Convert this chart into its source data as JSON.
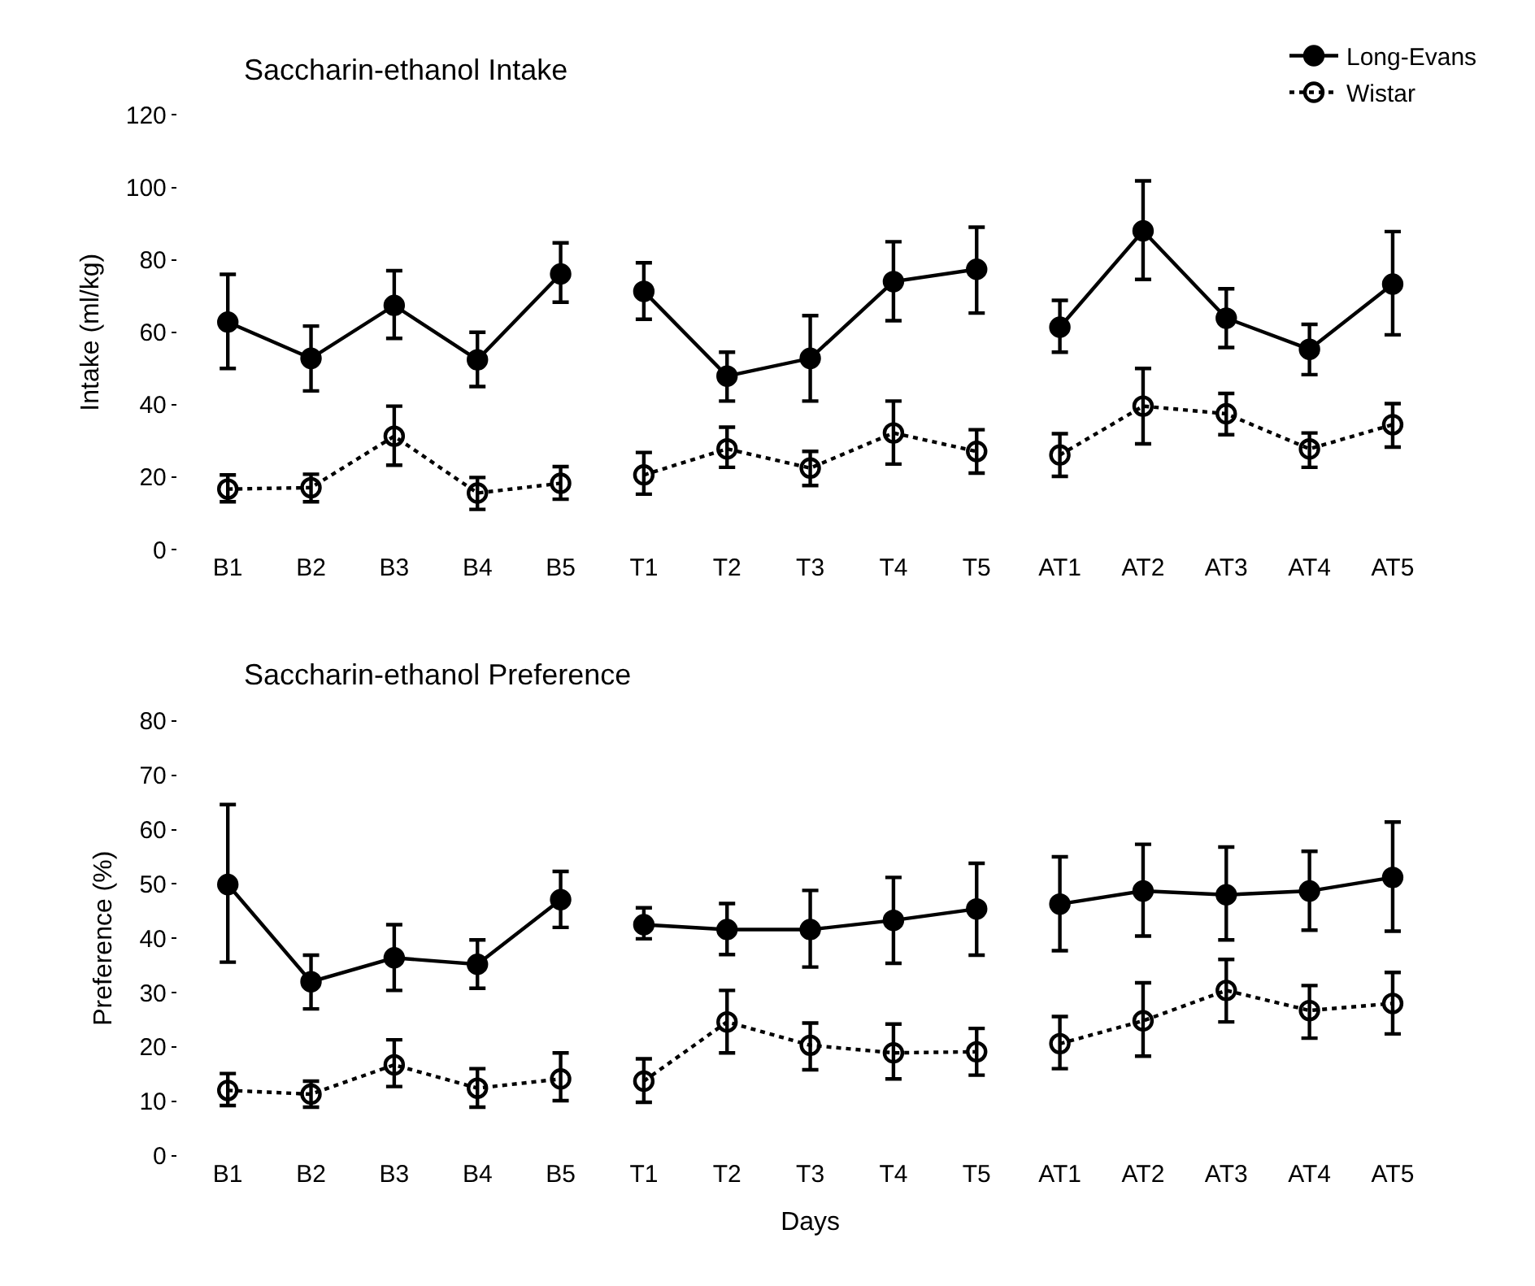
{
  "chart_data": [
    {
      "type": "line",
      "title": "Saccharin-ethanol Intake",
      "ylabel": "Intake (ml/kg)",
      "categories": [
        "B1",
        "B2",
        "B3",
        "B4",
        "B5",
        "T1",
        "T2",
        "T3",
        "T4",
        "T5",
        "AT1",
        "AT2",
        "AT3",
        "AT4",
        "AT5"
      ],
      "ylim": [
        0,
        120
      ],
      "yticks": [
        0,
        20,
        40,
        60,
        80,
        100,
        120
      ],
      "legend": "top right",
      "series": [
        {
          "name": "Long-Evans",
          "color": "#000000",
          "marker": "circle",
          "line_style": "solid",
          "values": [
            62.8,
            52.8,
            67.4,
            52.4,
            76.1,
            null,
            null,
            null,
            null,
            null,
            null,
            null,
            null,
            null,
            null
          ],
          "errors": [
            [
              50,
              76
            ],
            [
              43.8,
              61.7
            ],
            [
              58.3,
              77
            ],
            [
              45,
              60
            ],
            [
              68.3,
              84.7
            ],
            null,
            null,
            null,
            null,
            null,
            null,
            null,
            null,
            null,
            null
          ]
        },
        {
          "color": "#000000",
          "marker": "circle",
          "line_style": "solid",
          "values": [
            null,
            null,
            null,
            null,
            null,
            71.3,
            47.9,
            52.8,
            74,
            77.4,
            null,
            null,
            null,
            null,
            null
          ],
          "errors": [
            null,
            null,
            null,
            null,
            null,
            [
              63.6,
              79.2
            ],
            [
              41,
              54.5
            ],
            [
              41,
              64.6
            ],
            [
              63.2,
              85
            ],
            [
              65.3,
              89
            ],
            null,
            null,
            null,
            null,
            null
          ]
        },
        {
          "color": "#000000",
          "marker": "circle",
          "line_style": "solid",
          "values": [
            null,
            null,
            null,
            null,
            null,
            null,
            null,
            null,
            null,
            null,
            61.4,
            88,
            63.9,
            55.3,
            73.3
          ],
          "errors": [
            null,
            null,
            null,
            null,
            null,
            null,
            null,
            null,
            null,
            null,
            [
              54.5,
              68.8
            ],
            [
              74.6,
              101.8
            ],
            [
              55.8,
              72
            ],
            [
              48.3,
              62.2
            ],
            [
              59.3,
              87.8
            ]
          ]
        },
        {
          "name": "Wistar",
          "color": "#000000",
          "marker": "circle-open",
          "line_style": "dotted",
          "values": [
            16.7,
            17.1,
            31.3,
            15.6,
            18.3,
            null,
            null,
            null,
            null,
            null,
            null,
            null,
            null,
            null,
            null
          ],
          "errors": [
            [
              13.2,
              20.6
            ],
            [
              13.2,
              20.8
            ],
            [
              23.3,
              39.6
            ],
            [
              11.1,
              19.9
            ],
            [
              13.9,
              22.9
            ],
            null,
            null,
            null,
            null,
            null,
            null,
            null,
            null,
            null,
            null
          ]
        },
        {
          "color": "#000000",
          "marker": "circle-open",
          "line_style": "dotted",
          "values": [
            null,
            null,
            null,
            null,
            null,
            20.6,
            27.8,
            22.5,
            32.2,
            27.1,
            null,
            null,
            null,
            null,
            null
          ],
          "errors": [
            null,
            null,
            null,
            null,
            null,
            [
              15.3,
              26.8
            ],
            [
              22.7,
              33.8
            ],
            [
              17.7,
              27.1
            ],
            [
              23.6,
              41
            ],
            [
              21.1,
              33.1
            ],
            null,
            null,
            null,
            null,
            null
          ]
        },
        {
          "color": "#000000",
          "marker": "circle-open",
          "line_style": "dotted",
          "values": [
            null,
            null,
            null,
            null,
            null,
            null,
            null,
            null,
            null,
            null,
            26.1,
            39.6,
            37.5,
            27.8,
            34.5
          ],
          "errors": [
            null,
            null,
            null,
            null,
            null,
            null,
            null,
            null,
            null,
            null,
            [
              20.2,
              32
            ],
            [
              29.2,
              50
            ],
            [
              31.7,
              43.1
            ],
            [
              22.7,
              32.2
            ],
            [
              28.3,
              40.3
            ]
          ]
        }
      ]
    },
    {
      "type": "line",
      "title": "Saccharin-ethanol Preference",
      "ylabel": "Preference (%)",
      "xlabel": "Days",
      "categories": [
        "B1",
        "B2",
        "B3",
        "B4",
        "B5",
        "T1",
        "T2",
        "T3",
        "T4",
        "T5",
        "AT1",
        "AT2",
        "AT3",
        "AT4",
        "AT5"
      ],
      "ylim": [
        0,
        80
      ],
      "yticks": [
        0,
        10,
        20,
        30,
        40,
        50,
        60,
        70,
        80
      ],
      "legend": false,
      "series": [
        {
          "color": "#000000",
          "marker": "circle",
          "line_style": "solid",
          "values": [
            49.9,
            32,
            36.4,
            35.2,
            47.1,
            null,
            null,
            null,
            null,
            null,
            null,
            null,
            null,
            null,
            null
          ],
          "errors": [
            [
              35.6,
              64.6
            ],
            [
              27,
              36.9
            ],
            [
              30.4,
              42.5
            ],
            [
              30.8,
              39.7
            ],
            [
              42,
              52.3
            ],
            null,
            null,
            null,
            null,
            null,
            null,
            null,
            null,
            null,
            null
          ]
        },
        {
          "color": "#000000",
          "marker": "circle",
          "line_style": "solid",
          "values": [
            null,
            null,
            null,
            null,
            null,
            42.5,
            41.6,
            41.6,
            43.3,
            45.4,
            null,
            null,
            null,
            null,
            null
          ],
          "errors": [
            null,
            null,
            null,
            null,
            null,
            [
              39.9,
              45.6
            ],
            [
              37,
              46.4
            ],
            [
              34.7,
              48.8
            ],
            [
              35.4,
              51.2
            ],
            [
              36.9,
              53.8
            ],
            null,
            null,
            null,
            null,
            null
          ]
        },
        {
          "color": "#000000",
          "marker": "circle",
          "line_style": "solid",
          "values": [
            null,
            null,
            null,
            null,
            null,
            null,
            null,
            null,
            null,
            null,
            46.3,
            48.7,
            48,
            48.7,
            51.2
          ],
          "errors": [
            null,
            null,
            null,
            null,
            null,
            null,
            null,
            null,
            null,
            null,
            [
              37.7,
              55
            ],
            [
              40.4,
              57.3
            ],
            [
              39.7,
              56.8
            ],
            [
              41.5,
              56
            ],
            [
              41.3,
              61.4
            ]
          ]
        },
        {
          "color": "#000000",
          "marker": "circle-open",
          "line_style": "dotted",
          "values": [
            12,
            11.3,
            16.7,
            12.4,
            14.1,
            null,
            null,
            null,
            null,
            null,
            null,
            null,
            null,
            null,
            null
          ],
          "errors": [
            [
              9.2,
              15.1
            ],
            [
              8.9,
              13.7
            ],
            [
              12.7,
              21.3
            ],
            [
              8.9,
              16
            ],
            [
              10.1,
              18.9
            ],
            null,
            null,
            null,
            null,
            null,
            null,
            null,
            null,
            null,
            null
          ]
        },
        {
          "color": "#000000",
          "marker": "circle-open",
          "line_style": "dotted",
          "values": [
            null,
            null,
            null,
            null,
            null,
            13.7,
            24.6,
            20.3,
            18.9,
            19.1,
            null,
            null,
            null,
            null,
            null
          ],
          "errors": [
            null,
            null,
            null,
            null,
            null,
            [
              9.8,
              17.8
            ],
            [
              18.9,
              30.4
            ],
            [
              15.8,
              24.4
            ],
            [
              14.1,
              24.2
            ],
            [
              14.8,
              23.4
            ],
            null,
            null,
            null,
            null,
            null
          ]
        },
        {
          "color": "#000000",
          "marker": "circle-open",
          "line_style": "dotted",
          "values": [
            null,
            null,
            null,
            null,
            null,
            null,
            null,
            null,
            null,
            null,
            20.6,
            24.8,
            30.4,
            26.7,
            28
          ],
          "errors": [
            null,
            null,
            null,
            null,
            null,
            null,
            null,
            null,
            null,
            null,
            [
              16,
              25.6
            ],
            [
              18.3,
              31.8
            ],
            [
              24.6,
              36.1
            ],
            [
              21.6,
              31.3
            ],
            [
              22.4,
              33.7
            ]
          ]
        }
      ]
    }
  ]
}
